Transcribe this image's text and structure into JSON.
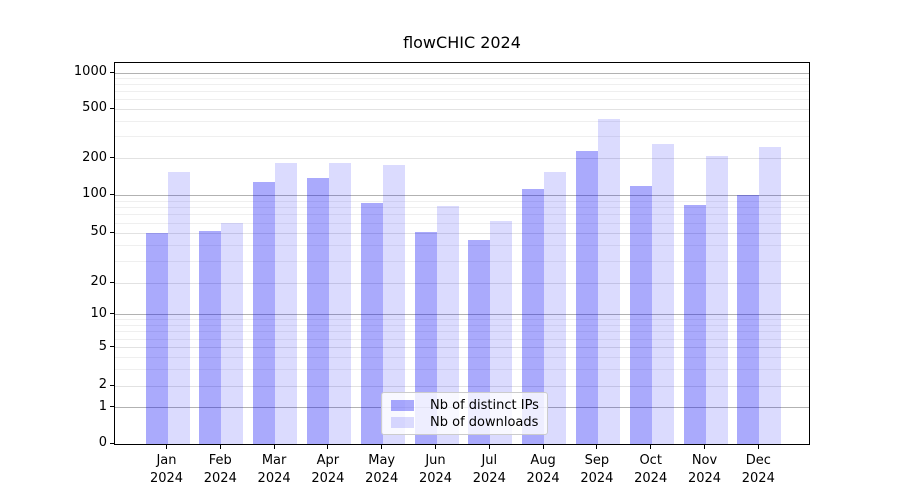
{
  "title": "flowCHIC 2024",
  "colors": {
    "distinct_ips_bar": "rgba(0,0,245,0.333)",
    "downloads_bar": "rgba(0,0,245,0.14)",
    "major_gridline": "#b2b2b2",
    "labeled_minor_gridline": "#e2e2e2",
    "minor_gridline": "#efefef",
    "axis_spine": "#000000"
  },
  "y_axis": {
    "tick_labels": [
      "0",
      "1",
      "2",
      "5",
      "10",
      "20",
      "50",
      "100",
      "200",
      "500",
      "1000"
    ]
  },
  "x_axis": {
    "year": "2024",
    "months": [
      "Jan",
      "Feb",
      "Mar",
      "Apr",
      "May",
      "Jun",
      "Jul",
      "Aug",
      "Sep",
      "Oct",
      "Nov",
      "Dec"
    ]
  },
  "legend": {
    "items": [
      {
        "label": "Nb of distinct IPs",
        "color_key": "distinct_ips_bar"
      },
      {
        "label": "Nb of downloads",
        "color_key": "downloads_bar"
      }
    ]
  },
  "chart_data": {
    "type": "bar",
    "title": "flowCHIC 2024",
    "categories": [
      "Jan 2024",
      "Feb 2024",
      "Mar 2024",
      "Apr 2024",
      "May 2024",
      "Jun 2024",
      "Jul 2024",
      "Aug 2024",
      "Sep 2024",
      "Oct 2024",
      "Nov 2024",
      "Dec 2024"
    ],
    "series": [
      {
        "name": "Nb of distinct IPs",
        "values": [
          50,
          52,
          130,
          140,
          87,
          51,
          44,
          112,
          232,
          120,
          84,
          100
        ]
      },
      {
        "name": "Nb of downloads",
        "values": [
          155,
          61,
          185,
          185,
          178,
          82,
          63,
          155,
          415,
          265,
          210,
          250
        ]
      }
    ],
    "xlabel": "",
    "ylabel": "",
    "yscale": "symlog",
    "y_ticks": [
      0,
      1,
      2,
      5,
      10,
      20,
      50,
      100,
      200,
      500,
      1000
    ],
    "ylim": [
      0,
      1200
    ],
    "grid": true,
    "legend_position": "lower center"
  }
}
